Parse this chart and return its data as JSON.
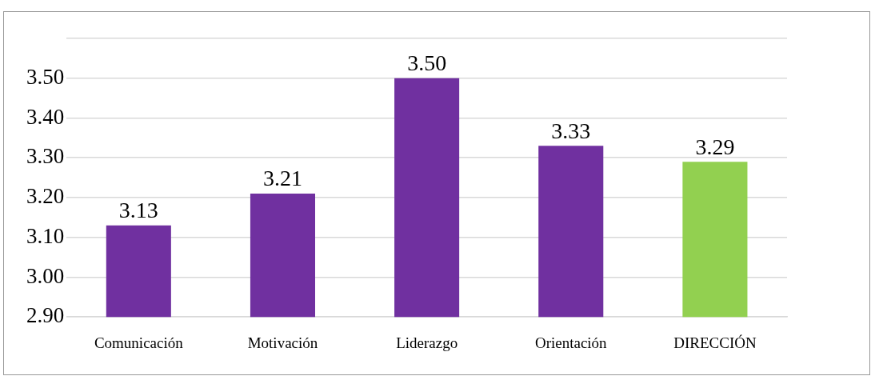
{
  "chart_data": {
    "type": "bar",
    "categories": [
      "Comunicación",
      "Motivación",
      "Liderazgo",
      "Orientación",
      "DIRECCIÓN"
    ],
    "values": [
      3.13,
      3.21,
      3.5,
      3.33,
      3.29
    ],
    "colors": [
      "#7030a0",
      "#7030a0",
      "#7030a0",
      "#7030a0",
      "#92d050"
    ],
    "value_labels": [
      "3.13",
      "3.21",
      "3.50",
      "3.33",
      "3.29"
    ],
    "ylim": [
      2.9,
      3.6
    ],
    "yticks": [
      {
        "value": 2.9,
        "label": "2.90"
      },
      {
        "value": 3.0,
        "label": "3.00"
      },
      {
        "value": 3.1,
        "label": "3.10"
      },
      {
        "value": 3.2,
        "label": "3.20"
      },
      {
        "value": 3.3,
        "label": "3.30"
      },
      {
        "value": 3.4,
        "label": "3.40"
      },
      {
        "value": 3.5,
        "label": "3.50"
      },
      {
        "value": 3.6,
        "label": null
      }
    ],
    "grid": "y",
    "legend": false
  }
}
